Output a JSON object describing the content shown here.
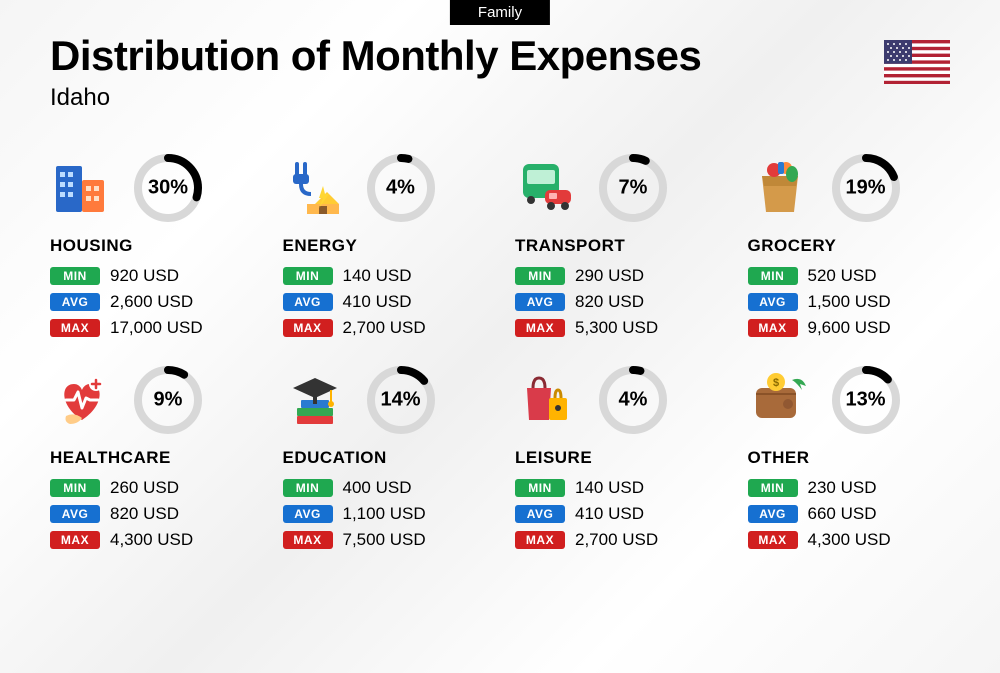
{
  "badge": "Family",
  "title": "Distribution of Monthly Expenses",
  "subtitle": "Idaho",
  "donut": {
    "track_color": "#d8d8d8",
    "fill_color": "#000000",
    "stroke_width": 8,
    "radius": 30
  },
  "pill_colors": {
    "min": "#1fa850",
    "avg": "#1670d1",
    "max": "#d11f1f"
  },
  "labels": {
    "min": "MIN",
    "avg": "AVG",
    "max": "MAX"
  },
  "categories": [
    {
      "name": "HOUSING",
      "icon": "housing",
      "percent": 30,
      "min": "920 USD",
      "avg": "2,600 USD",
      "max": "17,000 USD"
    },
    {
      "name": "ENERGY",
      "icon": "energy",
      "percent": 4,
      "min": "140 USD",
      "avg": "410 USD",
      "max": "2,700 USD"
    },
    {
      "name": "TRANSPORT",
      "icon": "transport",
      "percent": 7,
      "min": "290 USD",
      "avg": "820 USD",
      "max": "5,300 USD"
    },
    {
      "name": "GROCERY",
      "icon": "grocery",
      "percent": 19,
      "min": "520 USD",
      "avg": "1,500 USD",
      "max": "9,600 USD"
    },
    {
      "name": "HEALTHCARE",
      "icon": "healthcare",
      "percent": 9,
      "min": "260 USD",
      "avg": "820 USD",
      "max": "4,300 USD"
    },
    {
      "name": "EDUCATION",
      "icon": "education",
      "percent": 14,
      "min": "400 USD",
      "avg": "1,100 USD",
      "max": "7,500 USD"
    },
    {
      "name": "LEISURE",
      "icon": "leisure",
      "percent": 4,
      "min": "140 USD",
      "avg": "410 USD",
      "max": "2,700 USD"
    },
    {
      "name": "OTHER",
      "icon": "other",
      "percent": 13,
      "min": "230 USD",
      "avg": "660 USD",
      "max": "4,300 USD"
    }
  ]
}
